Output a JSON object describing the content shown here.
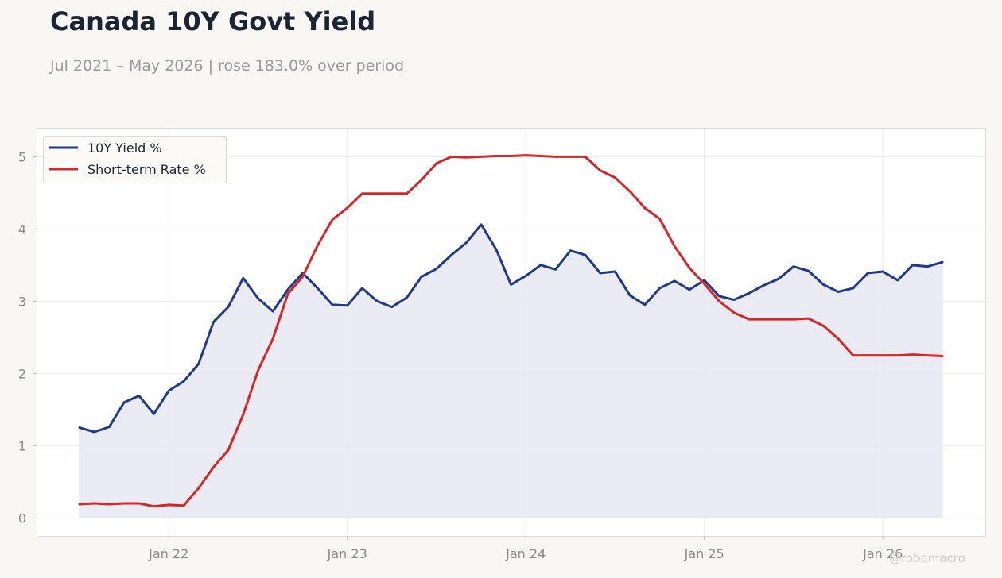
{
  "title": "Canada 10Y Govt Yield",
  "subtitle": "Jul 2021 – May 2026 | rose 183.0% over period",
  "watermark": "@robomacro",
  "colors": {
    "yield": "#1f3a8a",
    "rate": "#d62728",
    "fill": "#e8e9f2",
    "background": "#f8f7f4",
    "plot_background": "#ffffff"
  },
  "chart_data": {
    "type": "line",
    "title": "Canada 10Y Govt Yield",
    "xlabel": "",
    "ylabel": "",
    "x": [
      "2021-07",
      "2021-08",
      "2021-09",
      "2021-10",
      "2021-11",
      "2021-12",
      "2022-01",
      "2022-02",
      "2022-03",
      "2022-04",
      "2022-05",
      "2022-06",
      "2022-07",
      "2022-08",
      "2022-09",
      "2022-10",
      "2022-11",
      "2022-12",
      "2023-01",
      "2023-02",
      "2023-03",
      "2023-04",
      "2023-05",
      "2023-06",
      "2023-07",
      "2023-08",
      "2023-09",
      "2023-10",
      "2023-11",
      "2023-12",
      "2024-01",
      "2024-02",
      "2024-03",
      "2024-04",
      "2024-05",
      "2024-06",
      "2024-07",
      "2024-08",
      "2024-09",
      "2024-10",
      "2024-11",
      "2024-12",
      "2025-01",
      "2025-02",
      "2025-03",
      "2025-04",
      "2025-05",
      "2025-06",
      "2025-07",
      "2025-08",
      "2025-09",
      "2025-10",
      "2025-11",
      "2025-12",
      "2026-01",
      "2026-02",
      "2026-03",
      "2026-04",
      "2026-05"
    ],
    "series": [
      {
        "name": "10Y Yield %",
        "color": "#1f3a8a",
        "area_fill": true,
        "values": [
          1.25,
          1.19,
          1.26,
          1.6,
          1.69,
          1.44,
          1.76,
          1.89,
          2.13,
          2.71,
          2.92,
          3.32,
          3.04,
          2.86,
          3.16,
          3.39,
          3.18,
          2.95,
          2.94,
          3.18,
          3.0,
          2.92,
          3.05,
          3.34,
          3.45,
          3.64,
          3.81,
          4.06,
          3.72,
          3.23,
          3.35,
          3.5,
          3.44,
          3.7,
          3.64,
          3.39,
          3.41,
          3.08,
          2.95,
          3.18,
          3.28,
          3.16,
          3.29,
          3.07,
          3.02,
          3.11,
          3.22,
          3.31,
          3.48,
          3.42,
          3.23,
          3.13,
          3.18,
          3.39,
          3.41,
          3.29,
          3.5,
          3.48,
          3.54
        ]
      },
      {
        "name": "Short-term Rate %",
        "color": "#d62728",
        "area_fill": false,
        "values": [
          0.19,
          0.2,
          0.19,
          0.2,
          0.2,
          0.16,
          0.18,
          0.17,
          0.41,
          0.7,
          0.94,
          1.43,
          2.04,
          2.48,
          3.1,
          3.34,
          3.77,
          4.13,
          4.29,
          4.49,
          4.49,
          4.49,
          4.49,
          4.68,
          4.91,
          5.0,
          4.99,
          5.0,
          5.01,
          5.01,
          5.02,
          5.01,
          5.0,
          5.0,
          5.0,
          4.81,
          4.71,
          4.52,
          4.29,
          4.14,
          3.76,
          3.46,
          3.24,
          3.0,
          2.84,
          2.75,
          2.75,
          2.75,
          2.75,
          2.76,
          2.66,
          2.48,
          2.25,
          2.25,
          2.25,
          2.25,
          2.26,
          2.25,
          2.24
        ]
      }
    ],
    "ylim": [
      -0.25,
      5.4
    ],
    "yticks": [
      0,
      1,
      2,
      3,
      4,
      5
    ],
    "xticks": [
      {
        "x": "2022-01",
        "label": "Jan 22"
      },
      {
        "x": "2023-01",
        "label": "Jan 23"
      },
      {
        "x": "2024-01",
        "label": "Jan 24"
      },
      {
        "x": "2025-01",
        "label": "Jan 25"
      },
      {
        "x": "2026-01",
        "label": "Jan 26"
      }
    ],
    "grid": true,
    "legend": "top-left"
  }
}
